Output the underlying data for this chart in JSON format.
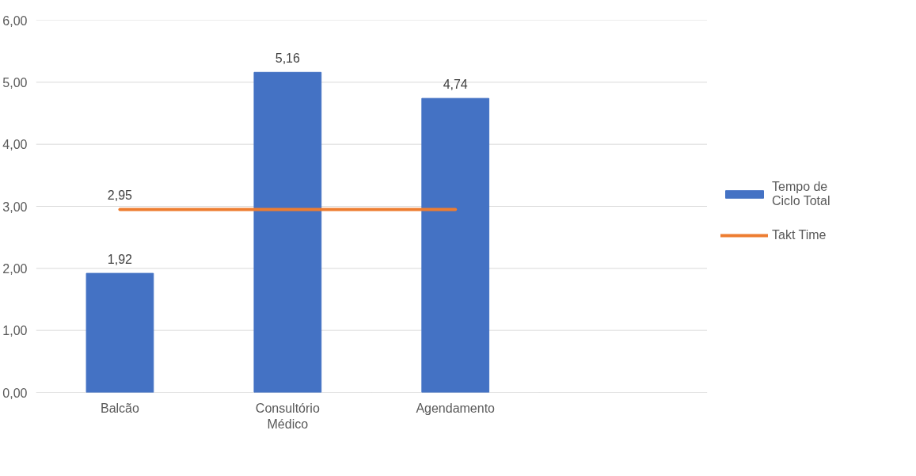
{
  "chart_data": {
    "type": "bar",
    "categories": [
      "Balcão",
      "Consultório Médico",
      "Agendamento",
      null
    ],
    "series": [
      {
        "name": "Tempo de Ciclo Total",
        "color": "#4472c4",
        "values": [
          1.92,
          5.16,
          4.74,
          null
        ],
        "value_labels": [
          "1,92",
          "5,16",
          "4,74",
          null
        ]
      },
      {
        "name": "Takt Time",
        "type": "line",
        "color": "#ed7d31",
        "values": [
          2.95,
          2.95,
          2.95,
          null
        ],
        "value_labels": [
          "2,95",
          null,
          null,
          null
        ]
      }
    ],
    "ylim": [
      0,
      6
    ],
    "yticks": [
      {
        "value": 0,
        "label": "0,00"
      },
      {
        "value": 1,
        "label": "1,00"
      },
      {
        "value": 2,
        "label": "2,00"
      },
      {
        "value": 3,
        "label": "3,00"
      },
      {
        "value": 4,
        "label": "4,00"
      },
      {
        "value": 5,
        "label": "5,00"
      },
      {
        "value": 6,
        "label": "6,00"
      }
    ],
    "grid": "y",
    "legend": "right",
    "marker": "none",
    "line_style": "solid"
  }
}
